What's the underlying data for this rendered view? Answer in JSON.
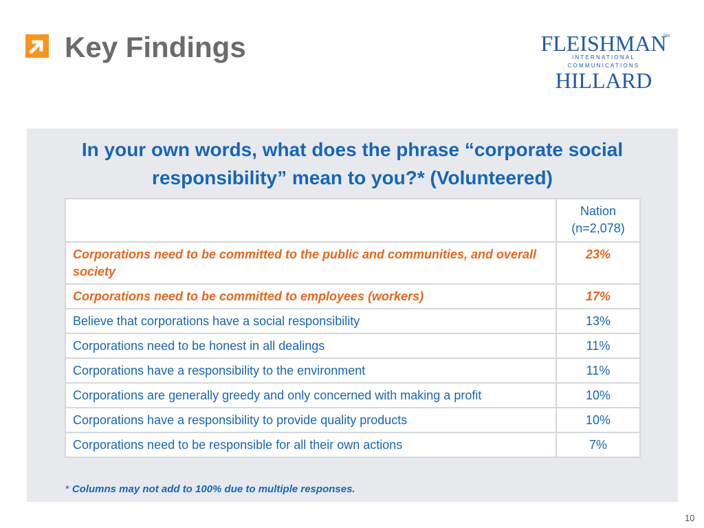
{
  "header": {
    "title": "Key Findings",
    "arrow_icon": "orange-arrow-icon",
    "accent_color": "#f7941d"
  },
  "logo": {
    "line1": "FLEISHMAN",
    "line2": "INTERNATIONAL COMMUNICATIONS",
    "line3": "HILLARD",
    "mark": "SM",
    "color": "#1f5aa8"
  },
  "panel": {
    "question": "In your own words, what does the phrase “corporate social responsibility” mean to you?* (Volunteered)",
    "table": {
      "header": {
        "label": "",
        "value_line1": "Nation",
        "value_line2": "(n=2,078)"
      },
      "rows": [
        {
          "label": "Corporations need to be committed to the public and communities, and overall society",
          "value": "23%",
          "highlight": true
        },
        {
          "label": "Corporations need to be committed to employees (workers)",
          "value": "17%",
          "highlight": true
        },
        {
          "label": "Believe that corporations have a social responsibility",
          "value": "13%",
          "highlight": false
        },
        {
          "label": "Corporations need to be honest in all dealings",
          "value": "11%",
          "highlight": false
        },
        {
          "label": "Corporations have a responsibility to the environment",
          "value": "11%",
          "highlight": false
        },
        {
          "label": "Corporations are generally greedy and only concerned with making a profit",
          "value": "10%",
          "highlight": false
        },
        {
          "label": "Corporations have a responsibility to provide quality products",
          "value": "10%",
          "highlight": false
        },
        {
          "label": "Corporations need to be responsible for all their own actions",
          "value": "7%",
          "highlight": false
        }
      ]
    },
    "footnote": {
      "marker": "*",
      "text": "Columns may not add to 100% due to multiple responses."
    },
    "text_color": "#1666b8",
    "highlight_color": "#e8661a"
  },
  "page_number": "10"
}
